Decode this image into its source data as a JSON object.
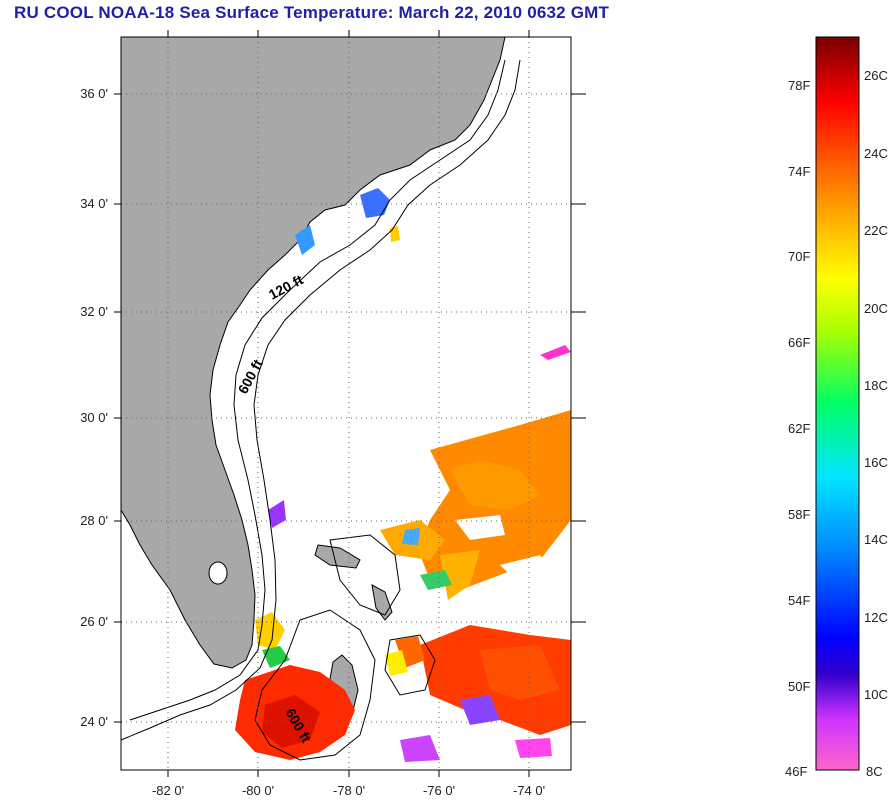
{
  "title": "RU COOL  NOAA-18  Sea Surface Temperature:  March 22, 2010 0632 GMT",
  "colors": {
    "title": "#1f1fa8",
    "land": "#a8a8a8",
    "sea": "#ffffff"
  },
  "map": {
    "lat_labels": [
      "36 0'",
      "34 0'",
      "32 0'",
      "30 0'",
      "28 0'",
      "26 0'",
      "24 0'"
    ],
    "lon_labels": [
      "-82 0'",
      "-80 0'",
      "-78 0'",
      "-76 0'",
      "-74 0'"
    ],
    "contours": {
      "c120": "120 ft",
      "c600a": "600 ft",
      "c600b": "600 ft"
    }
  },
  "colorbar": {
    "f_labels": [
      "78F",
      "74F",
      "70F",
      "66F",
      "62F",
      "58F",
      "54F",
      "50F",
      "46F"
    ],
    "c_labels": [
      "26C",
      "24C",
      "22C",
      "20C",
      "18C",
      "16C",
      "14C",
      "12C",
      "10C",
      "8C"
    ]
  }
}
